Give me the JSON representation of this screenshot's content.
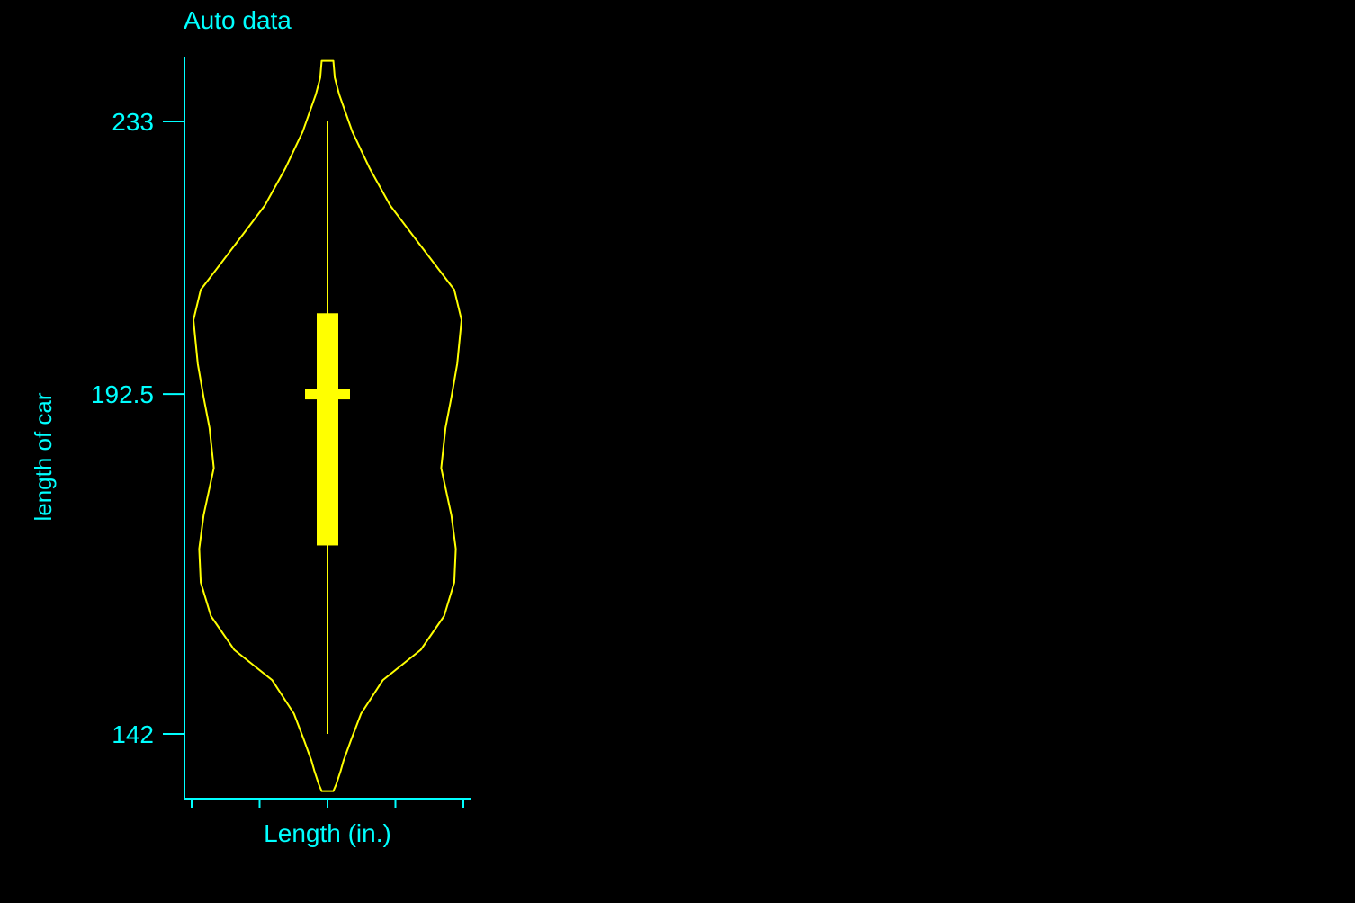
{
  "chart_data": {
    "type": "violin",
    "title": "Auto data",
    "xlabel": "Length (in.)",
    "ylabel": "length of car",
    "y_ticks": [
      142,
      192.5,
      233
    ],
    "y_tick_labels": [
      "142",
      "192.5",
      "233"
    ],
    "x_ticks_count": 5,
    "ylim": [
      132.5,
      243.0
    ],
    "grid": false,
    "legend": "none",
    "summary": {
      "min": 142,
      "q1": 170.0,
      "median": 192.5,
      "q3": 204.5,
      "max": 233
    },
    "density": [
      {
        "y": 133.5,
        "w": 0.04
      },
      {
        "y": 134.5,
        "w": 0.06
      },
      {
        "y": 136.5,
        "w": 0.09
      },
      {
        "y": 138.0,
        "w": 0.11
      },
      {
        "y": 141.0,
        "w": 0.16
      },
      {
        "y": 145.0,
        "w": 0.23
      },
      {
        "y": 150.0,
        "w": 0.38
      },
      {
        "y": 154.5,
        "w": 0.64
      },
      {
        "y": 159.5,
        "w": 0.8
      },
      {
        "y": 164.5,
        "w": 0.87
      },
      {
        "y": 169.5,
        "w": 0.88
      },
      {
        "y": 174.5,
        "w": 0.85
      },
      {
        "y": 181.5,
        "w": 0.78
      },
      {
        "y": 187.5,
        "w": 0.81
      },
      {
        "y": 192.0,
        "w": 0.85
      },
      {
        "y": 197.0,
        "w": 0.89
      },
      {
        "y": 203.5,
        "w": 0.92
      },
      {
        "y": 208.0,
        "w": 0.87
      },
      {
        "y": 214.5,
        "w": 0.64
      },
      {
        "y": 220.5,
        "w": 0.43
      },
      {
        "y": 226.0,
        "w": 0.29
      },
      {
        "y": 231.5,
        "w": 0.17
      },
      {
        "y": 237.0,
        "w": 0.08
      },
      {
        "y": 239.5,
        "w": 0.05
      },
      {
        "y": 242.0,
        "w": 0.04
      }
    ],
    "colors": {
      "background": "#000000",
      "axis": "#00ffff",
      "text": "#00ffff",
      "violin": "#ffff00"
    }
  }
}
